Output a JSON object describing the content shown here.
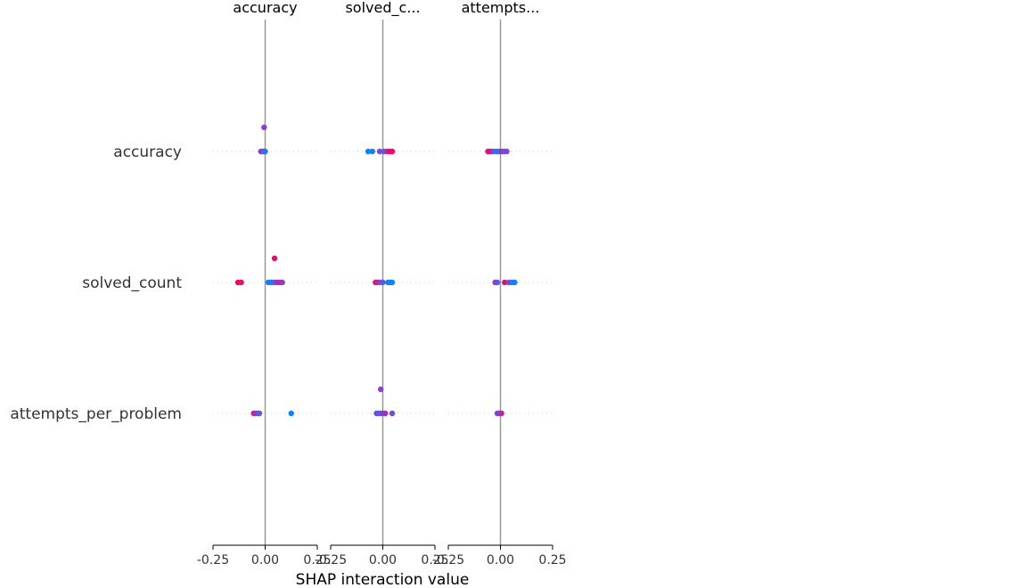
{
  "chart_data": {
    "type": "scatter",
    "title": "",
    "xlabel": "SHAP interaction value",
    "features": [
      "accuracy",
      "solved_count",
      "attempts_per_problem"
    ],
    "columns": [
      "accuracy",
      "solved_c...",
      "attempts..."
    ],
    "xlim": [
      -0.25,
      0.25
    ],
    "xticks": [
      -0.25,
      0.0,
      0.25
    ],
    "xtick_labels": [
      "-0.25",
      "0.00",
      "0.25"
    ],
    "grid": false,
    "legend": "none",
    "colors": {
      "feature_low": "#008bfb",
      "feature_mid": "#8a3fd1",
      "feature_high": "#ff0052",
      "zero_line": "#999999",
      "row_guide": "#cccccc",
      "text": "#333333"
    },
    "panels": [
      {
        "column": "accuracy",
        "rows": [
          {
            "feature": "accuracy",
            "points": [
              {
                "x": -0.005,
                "offset": 1,
                "color_value": 0.5
              },
              {
                "x": -0.02,
                "offset": 0,
                "color_value": 0.7
              },
              {
                "x": -0.012,
                "offset": 0,
                "color_value": 0.3
              },
              {
                "x": -0.005,
                "offset": 0,
                "color_value": 0.4
              },
              {
                "x": 0.0,
                "offset": 0,
                "color_value": 0.15
              }
            ]
          },
          {
            "feature": "solved_count",
            "points": [
              {
                "x": 0.045,
                "offset": 1,
                "color_value": 0.9
              },
              {
                "x": -0.13,
                "offset": 0,
                "color_value": 0.95
              },
              {
                "x": -0.115,
                "offset": 0,
                "color_value": 0.85
              },
              {
                "x": 0.015,
                "offset": 0,
                "color_value": 0.05
              },
              {
                "x": 0.03,
                "offset": 0,
                "color_value": 0.1
              },
              {
                "x": 0.045,
                "offset": 0,
                "color_value": 0.3
              },
              {
                "x": 0.058,
                "offset": 0,
                "color_value": 0.6
              },
              {
                "x": 0.072,
                "offset": 0,
                "color_value": 0.75
              },
              {
                "x": 0.082,
                "offset": 0,
                "color_value": 0.5
              }
            ]
          },
          {
            "feature": "attempts_per_problem",
            "points": [
              {
                "x": -0.055,
                "offset": 0,
                "color_value": 0.75
              },
              {
                "x": -0.045,
                "offset": 0,
                "color_value": 0.6
              },
              {
                "x": -0.035,
                "offset": 0,
                "color_value": 0.5
              },
              {
                "x": -0.028,
                "offset": 0,
                "color_value": 0.35
              },
              {
                "x": 0.125,
                "offset": 0,
                "color_value": 0.05
              }
            ]
          }
        ]
      },
      {
        "column": "solved_c...",
        "rows": [
          {
            "feature": "accuracy",
            "points": [
              {
                "x": -0.07,
                "offset": 0,
                "color_value": 0.05
              },
              {
                "x": -0.05,
                "offset": 0,
                "color_value": 0.1
              },
              {
                "x": -0.015,
                "offset": 0,
                "color_value": 0.45
              },
              {
                "x": 0.005,
                "offset": 0,
                "color_value": 0.3
              },
              {
                "x": 0.02,
                "offset": 0,
                "color_value": 0.65
              },
              {
                "x": 0.032,
                "offset": 0,
                "color_value": 0.9
              },
              {
                "x": 0.045,
                "offset": 0,
                "color_value": 0.95
              }
            ]
          },
          {
            "feature": "solved_count",
            "points": [
              {
                "x": -0.035,
                "offset": 0,
                "color_value": 0.9
              },
              {
                "x": -0.025,
                "offset": 0,
                "color_value": 0.7
              },
              {
                "x": -0.015,
                "offset": 0,
                "color_value": 0.5
              },
              {
                "x": 0.0,
                "offset": 0,
                "color_value": 0.3
              },
              {
                "x": 0.025,
                "offset": 0,
                "color_value": 0.1
              },
              {
                "x": 0.035,
                "offset": 0,
                "color_value": 0.05
              },
              {
                "x": 0.045,
                "offset": 0,
                "color_value": 0.05
              }
            ]
          },
          {
            "feature": "attempts_per_problem",
            "points": [
              {
                "x": -0.01,
                "offset": 1,
                "color_value": 0.5
              },
              {
                "x": -0.03,
                "offset": 0,
                "color_value": 0.35
              },
              {
                "x": -0.02,
                "offset": 0,
                "color_value": 0.45
              },
              {
                "x": -0.01,
                "offset": 0,
                "color_value": 0.25
              },
              {
                "x": 0.0,
                "offset": 0,
                "color_value": 0.55
              },
              {
                "x": 0.012,
                "offset": 0,
                "color_value": 0.6
              },
              {
                "x": 0.045,
                "offset": 0,
                "color_value": 0.4
              }
            ]
          }
        ]
      },
      {
        "column": "attempts...",
        "rows": [
          {
            "feature": "accuracy",
            "points": [
              {
                "x": -0.06,
                "offset": 0,
                "color_value": 0.8
              },
              {
                "x": -0.048,
                "offset": 0,
                "color_value": 0.95
              },
              {
                "x": -0.035,
                "offset": 0,
                "color_value": 0.4
              },
              {
                "x": -0.02,
                "offset": 0,
                "color_value": 0.15
              },
              {
                "x": -0.008,
                "offset": 0,
                "color_value": 0.2
              },
              {
                "x": 0.005,
                "offset": 0,
                "color_value": 0.6
              },
              {
                "x": 0.018,
                "offset": 0,
                "color_value": 0.35
              },
              {
                "x": 0.03,
                "offset": 0,
                "color_value": 0.45
              }
            ]
          },
          {
            "feature": "solved_count",
            "points": [
              {
                "x": -0.025,
                "offset": 0,
                "color_value": 0.6
              },
              {
                "x": -0.015,
                "offset": 0,
                "color_value": 0.35
              },
              {
                "x": 0.02,
                "offset": 0,
                "color_value": 0.85
              },
              {
                "x": 0.04,
                "offset": 0,
                "color_value": 0.5
              },
              {
                "x": 0.055,
                "offset": 0,
                "color_value": 0.1
              },
              {
                "x": 0.068,
                "offset": 0,
                "color_value": 0.05
              }
            ]
          },
          {
            "feature": "attempts_per_problem",
            "points": [
              {
                "x": -0.015,
                "offset": 0,
                "color_value": 0.4
              },
              {
                "x": -0.005,
                "offset": 0,
                "color_value": 0.5
              },
              {
                "x": 0.005,
                "offset": 0,
                "color_value": 0.7
              }
            ]
          }
        ]
      }
    ]
  }
}
